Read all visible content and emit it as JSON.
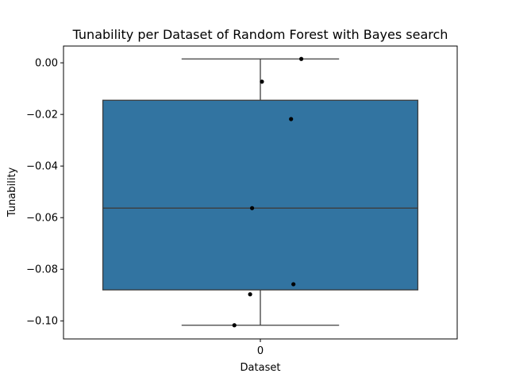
{
  "chart_data": {
    "type": "box",
    "title": "Tunability per Dataset of Random Forest with Bayes search",
    "xlabel": "Dataset",
    "ylabel": "Tunability",
    "categories": [
      "0"
    ],
    "ylim": [
      -0.107,
      0.0065
    ],
    "yticks": [
      0.0,
      -0.02,
      -0.04,
      -0.06,
      -0.08,
      -0.1
    ],
    "ytick_labels": [
      "0.00",
      "−0.02",
      "−0.04",
      "−0.06",
      "−0.08",
      "−0.10"
    ],
    "grid": false,
    "box": {
      "whisker_low": -0.1017,
      "q1": -0.088,
      "median": -0.0563,
      "q3": -0.0145,
      "whisker_high": 0.0015
    },
    "points": [
      {
        "x_offset": 0.104,
        "y": 0.0015
      },
      {
        "x_offset": 0.004,
        "y": -0.0073
      },
      {
        "x_offset": 0.078,
        "y": -0.0218
      },
      {
        "x_offset": -0.021,
        "y": -0.0563
      },
      {
        "x_offset": 0.084,
        "y": -0.0858
      },
      {
        "x_offset": -0.026,
        "y": -0.0897
      },
      {
        "x_offset": -0.066,
        "y": -0.1017
      }
    ],
    "colors": {
      "box_fill": "#3274a1",
      "box_edge": "#3d3d3d",
      "points": "#000000",
      "axes": "#000000"
    }
  }
}
